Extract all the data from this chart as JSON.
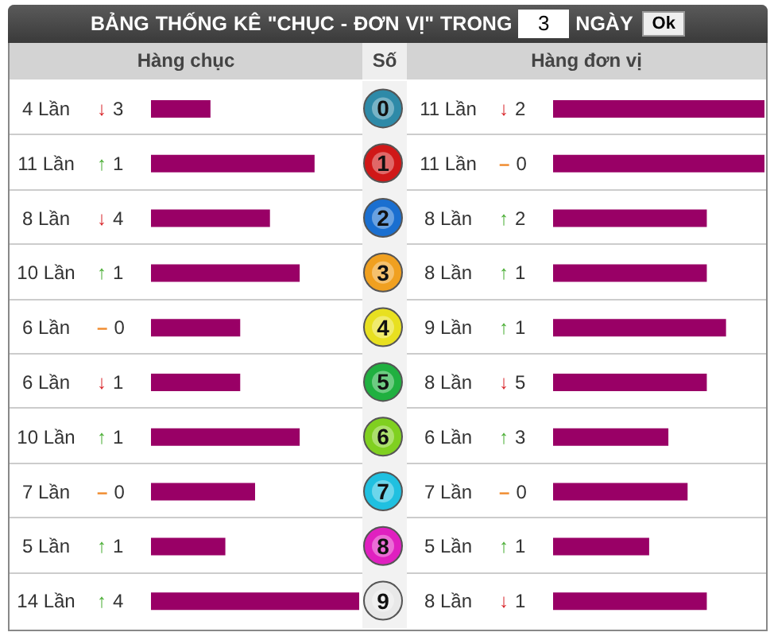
{
  "chart_data": [
    {
      "type": "bar",
      "orientation": "horizontal",
      "title": "BẢNG THỐNG KÊ \"CHỤC - ĐƠN VỊ\" TRONG 3 NGÀY",
      "subtitle": "Hàng chục",
      "categories": [
        "0",
        "1",
        "2",
        "3",
        "4",
        "5",
        "6",
        "7",
        "8",
        "9"
      ],
      "values": [
        4,
        11,
        8,
        10,
        6,
        6,
        10,
        7,
        5,
        14
      ],
      "color": "#990066",
      "value_labels": [
        "4 Lần",
        "11 Lần",
        "8 Lần",
        "10 Lần",
        "6 Lần",
        "6 Lần",
        "10 Lần",
        "7 Lần",
        "5 Lần",
        "14 Lần"
      ],
      "tick_labels": false,
      "annotations": [
        "Ok",
        "↓ 3",
        "↑ 1",
        "↓ 4",
        "↑ 1",
        "– 0",
        "↓ 1",
        "↑ 1",
        "– 0",
        "↑ 1",
        "↑ 4"
      ]
    },
    {
      "type": "bar",
      "orientation": "horizontal",
      "title": "Hàng đơn vị",
      "ylabel": "Số",
      "categories": [
        "0",
        "1",
        "2",
        "3",
        "4",
        "5",
        "6",
        "7",
        "8",
        "9"
      ],
      "values": [
        11,
        11,
        8,
        8,
        9,
        8,
        6,
        7,
        5,
        8
      ],
      "color": "#990066",
      "value_labels": [
        "11 Lần",
        "11 Lần",
        "8 Lần",
        "8 Lần",
        "9 Lần",
        "8 Lần",
        "6 Lần",
        "7 Lần",
        "5 Lần",
        "8 Lần"
      ],
      "tick_labels": "y",
      "annotations": [
        "↓ 2",
        "– 0",
        "↑ 2",
        "↑ 1",
        "↑ 1",
        "↓ 5",
        "↑ 3",
        "– 0",
        "↑ 1",
        "↓ 1"
      ]
    }
  ]
}
